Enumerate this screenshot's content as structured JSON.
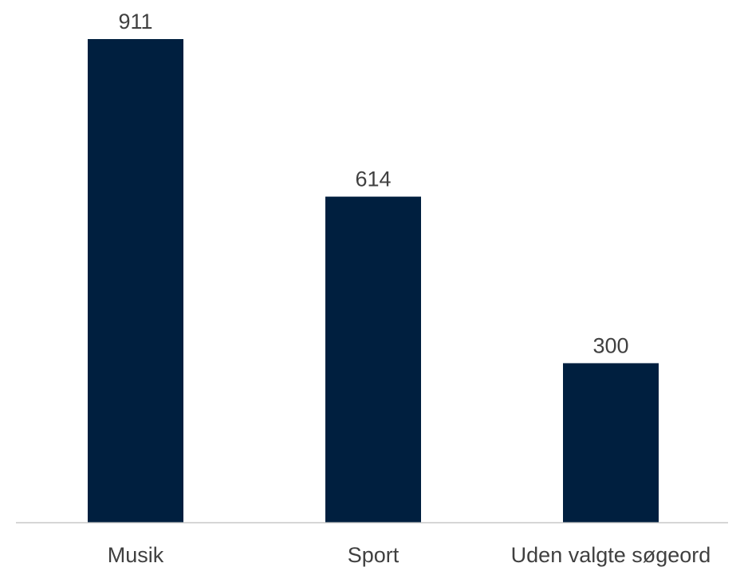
{
  "chart_data": {
    "type": "bar",
    "title": "",
    "xlabel": "",
    "ylabel": "",
    "categories": [
      "Musik",
      "Sport",
      "Uden valgte søgeord"
    ],
    "values": [
      911,
      614,
      300
    ],
    "data_labels": [
      "911",
      "614",
      "300"
    ],
    "ylim": [
      0,
      911
    ],
    "grid": false,
    "legend": "none",
    "colors": {
      "bar": "#001f3f",
      "axis": "#c8c8c8",
      "text": "#404040"
    }
  }
}
